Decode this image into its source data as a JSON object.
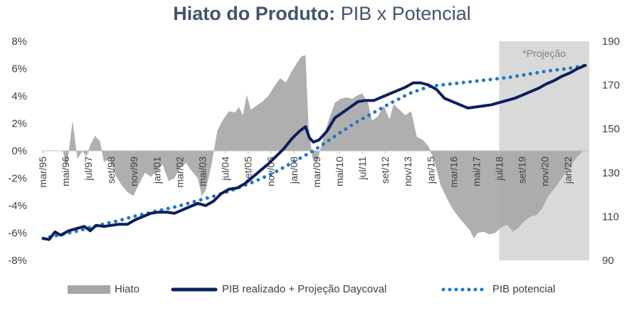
{
  "chart_data": {
    "type": "area+line",
    "title_bold": "Hiato do Produto:",
    "title_rest": "PIB x Potencial",
    "shaded_region_label": "*Projeção",
    "shaded_region_start": "jul/18",
    "left_axis": {
      "range": [
        -8,
        8
      ],
      "ticks": [
        "8%",
        "6%",
        "4%",
        "2%",
        "0%",
        "-2%",
        "-4%",
        "-6%",
        "-8%"
      ]
    },
    "right_axis": {
      "range": [
        90,
        190
      ],
      "ticks": [
        "190",
        "170",
        "150",
        "130",
        "110",
        "90"
      ]
    },
    "x_labels": [
      "mar/95",
      "mai/96",
      "jul/97",
      "set/98",
      "nov/99",
      "jan/01",
      "mar/02",
      "mai/03",
      "jul/04",
      "set/05",
      "nov/06",
      "jan/08",
      "mar/09",
      "mai/10",
      "jul/11",
      "set/12",
      "nov/13",
      "jan/15",
      "mar/16",
      "mai/17",
      "jul/18",
      "set/19",
      "nov/20",
      "jan/22"
    ],
    "series": [
      {
        "name": "Hiato",
        "axis": "left",
        "color": "#a6a6a6",
        "points": [
          [
            1996.2,
            0
          ],
          [
            1996.4,
            -1.2
          ],
          [
            1996.7,
            2.2
          ],
          [
            1996.95,
            -0.6
          ],
          [
            1997.2,
            0
          ],
          [
            1997.4,
            -0.4
          ],
          [
            1997.6,
            0.4
          ],
          [
            1997.85,
            1.1
          ],
          [
            1998.1,
            0.7
          ],
          [
            1998.3,
            -0.8
          ],
          [
            1998.6,
            -0.6
          ],
          [
            1998.9,
            -1.8
          ],
          [
            1999.2,
            -2.5
          ],
          [
            1999.5,
            -3.0
          ],
          [
            1999.8,
            -3.3
          ],
          [
            2000.1,
            -2.4
          ],
          [
            2000.4,
            -1.6
          ],
          [
            2000.7,
            -1.9
          ],
          [
            2001.0,
            -1.5
          ],
          [
            2001.3,
            -1.0
          ],
          [
            2001.6,
            -2.2
          ],
          [
            2001.9,
            -2.0
          ],
          [
            2002.2,
            -1.2
          ],
          [
            2002.5,
            -0.9
          ],
          [
            2002.8,
            -1.5
          ],
          [
            2003.1,
            -2.0
          ],
          [
            2003.3,
            -3.3
          ],
          [
            2003.5,
            -2.9
          ],
          [
            2003.8,
            -1.0
          ],
          [
            2004.1,
            1.5
          ],
          [
            2004.4,
            2.3
          ],
          [
            2004.7,
            2.9
          ],
          [
            2005.0,
            2.8
          ],
          [
            2005.2,
            3.2
          ],
          [
            2005.4,
            2.6
          ],
          [
            2005.6,
            4.1
          ],
          [
            2005.8,
            3.0
          ],
          [
            2006.1,
            3.3
          ],
          [
            2006.4,
            3.6
          ],
          [
            2006.7,
            4.0
          ],
          [
            2007.0,
            4.7
          ],
          [
            2007.3,
            5.3
          ],
          [
            2007.6,
            5.0
          ],
          [
            2007.9,
            5.8
          ],
          [
            2008.2,
            6.5
          ],
          [
            2008.4,
            6.9
          ],
          [
            2008.6,
            7.0
          ],
          [
            2008.75,
            2.0
          ],
          [
            2008.95,
            -0.5
          ],
          [
            2009.2,
            -0.8
          ],
          [
            2009.5,
            0.9
          ],
          [
            2009.8,
            2.3
          ],
          [
            2010.1,
            3.5
          ],
          [
            2010.4,
            3.8
          ],
          [
            2010.7,
            3.9
          ],
          [
            2011.0,
            3.8
          ],
          [
            2011.2,
            4.0
          ],
          [
            2011.5,
            4.2
          ],
          [
            2011.8,
            3.5
          ],
          [
            2012.0,
            2.2
          ],
          [
            2012.3,
            2.5
          ],
          [
            2012.6,
            3.3
          ],
          [
            2012.9,
            2.3
          ],
          [
            2013.1,
            3.4
          ],
          [
            2013.4,
            3.0
          ],
          [
            2013.7,
            2.6
          ],
          [
            2014.0,
            2.9
          ],
          [
            2014.3,
            1.0
          ],
          [
            2014.6,
            0.8
          ],
          [
            2014.9,
            0.3
          ],
          [
            2015.2,
            -0.8
          ],
          [
            2015.5,
            -2.5
          ],
          [
            2015.8,
            -3.4
          ],
          [
            2016.1,
            -4.2
          ],
          [
            2016.4,
            -4.8
          ],
          [
            2016.7,
            -5.3
          ],
          [
            2017.0,
            -5.8
          ],
          [
            2017.2,
            -6.4
          ],
          [
            2017.4,
            -6.0
          ],
          [
            2017.7,
            -5.9
          ],
          [
            2018.0,
            -6.1
          ],
          [
            2018.3,
            -6.0
          ],
          [
            2018.6,
            -5.6
          ],
          [
            2018.9,
            -5.4
          ],
          [
            2019.2,
            -5.9
          ],
          [
            2019.5,
            -5.6
          ],
          [
            2019.8,
            -5.1
          ],
          [
            2020.1,
            -4.8
          ],
          [
            2020.4,
            -4.7
          ],
          [
            2020.7,
            -4.2
          ],
          [
            2021.0,
            -3.3
          ],
          [
            2021.3,
            -2.8
          ],
          [
            2021.6,
            -2.2
          ],
          [
            2021.9,
            -1.6
          ],
          [
            2022.2,
            -1.0
          ],
          [
            2022.5,
            -0.4
          ],
          [
            2022.8,
            0
          ]
        ]
      },
      {
        "name": "PIB realizado + Projeção Daycoval",
        "axis": "right",
        "color": "#0b1f5c",
        "points": [
          [
            1995.2,
            100
          ],
          [
            1995.5,
            99.5
          ],
          [
            1995.8,
            103
          ],
          [
            1996.1,
            101.5
          ],
          [
            1996.5,
            103.5
          ],
          [
            1996.9,
            104.5
          ],
          [
            1997.3,
            105.5
          ],
          [
            1997.6,
            103.5
          ],
          [
            1997.9,
            106
          ],
          [
            1998.3,
            105.5
          ],
          [
            1998.7,
            106
          ],
          [
            1999.1,
            106.5
          ],
          [
            1999.5,
            106.5
          ],
          [
            1999.9,
            108.5
          ],
          [
            2000.3,
            110
          ],
          [
            2000.7,
            111.5
          ],
          [
            2001.1,
            112
          ],
          [
            2001.5,
            112
          ],
          [
            2001.9,
            111.5
          ],
          [
            2002.3,
            113
          ],
          [
            2002.7,
            114.5
          ],
          [
            2003.1,
            116
          ],
          [
            2003.5,
            115
          ],
          [
            2003.9,
            117
          ],
          [
            2004.3,
            120.5
          ],
          [
            2004.7,
            122.5
          ],
          [
            2005.1,
            123
          ],
          [
            2005.5,
            125
          ],
          [
            2005.9,
            128
          ],
          [
            2006.3,
            131
          ],
          [
            2006.7,
            134
          ],
          [
            2007.1,
            137.5
          ],
          [
            2007.5,
            141
          ],
          [
            2007.9,
            145.5
          ],
          [
            2008.3,
            149
          ],
          [
            2008.6,
            151
          ],
          [
            2008.8,
            146
          ],
          [
            2009.0,
            144
          ],
          [
            2009.3,
            145
          ],
          [
            2009.7,
            149
          ],
          [
            2010.1,
            155
          ],
          [
            2010.5,
            157.5
          ],
          [
            2010.9,
            160
          ],
          [
            2011.3,
            162.5
          ],
          [
            2011.7,
            163
          ],
          [
            2012.1,
            163
          ],
          [
            2012.5,
            164.5
          ],
          [
            2012.9,
            166
          ],
          [
            2013.3,
            167.5
          ],
          [
            2013.7,
            169
          ],
          [
            2014.1,
            171
          ],
          [
            2014.5,
            171
          ],
          [
            2014.9,
            170
          ],
          [
            2015.3,
            168
          ],
          [
            2015.7,
            164
          ],
          [
            2016.1,
            162.5
          ],
          [
            2016.5,
            161
          ],
          [
            2016.9,
            159.5
          ],
          [
            2017.3,
            160
          ],
          [
            2017.7,
            160.5
          ],
          [
            2018.1,
            161
          ],
          [
            2018.5,
            162
          ],
          [
            2018.9,
            163
          ],
          [
            2019.3,
            164
          ],
          [
            2019.7,
            165.5
          ],
          [
            2020.1,
            167
          ],
          [
            2020.5,
            168.5
          ],
          [
            2020.9,
            170.5
          ],
          [
            2021.3,
            172
          ],
          [
            2021.7,
            174
          ],
          [
            2022.1,
            175.5
          ],
          [
            2022.5,
            177.5
          ],
          [
            2022.9,
            179
          ]
        ]
      },
      {
        "name": "PIB potencial",
        "axis": "right",
        "color": "#1f77c4",
        "points": [
          [
            1995.2,
            100
          ],
          [
            1996.0,
            101.5
          ],
          [
            1997.0,
            103.5
          ],
          [
            1998.0,
            106
          ],
          [
            1999.0,
            108
          ],
          [
            2000.0,
            110.5
          ],
          [
            2001.0,
            112.5
          ],
          [
            2002.0,
            114.5
          ],
          [
            2003.0,
            117
          ],
          [
            2004.0,
            119.5
          ],
          [
            2005.0,
            122.5
          ],
          [
            2006.0,
            126
          ],
          [
            2007.0,
            130
          ],
          [
            2008.0,
            135
          ],
          [
            2009.0,
            140
          ],
          [
            2010.0,
            146
          ],
          [
            2011.0,
            152
          ],
          [
            2012.0,
            157
          ],
          [
            2013.0,
            162
          ],
          [
            2014.0,
            166.5
          ],
          [
            2015.0,
            169.5
          ],
          [
            2016.0,
            170.5
          ],
          [
            2017.0,
            171.5
          ],
          [
            2018.0,
            172.5
          ],
          [
            2019.0,
            173.5
          ],
          [
            2020.0,
            175
          ],
          [
            2021.0,
            176.5
          ],
          [
            2022.0,
            177.5
          ],
          [
            2022.9,
            179
          ]
        ]
      }
    ],
    "legend": [
      "Hiato",
      "PIB realizado + Projeção Daycoval",
      "PIB potencial"
    ]
  },
  "colors": {
    "title": "#44546a",
    "projection_band": "#d9d9d9",
    "grid": "#bfbfbf"
  }
}
